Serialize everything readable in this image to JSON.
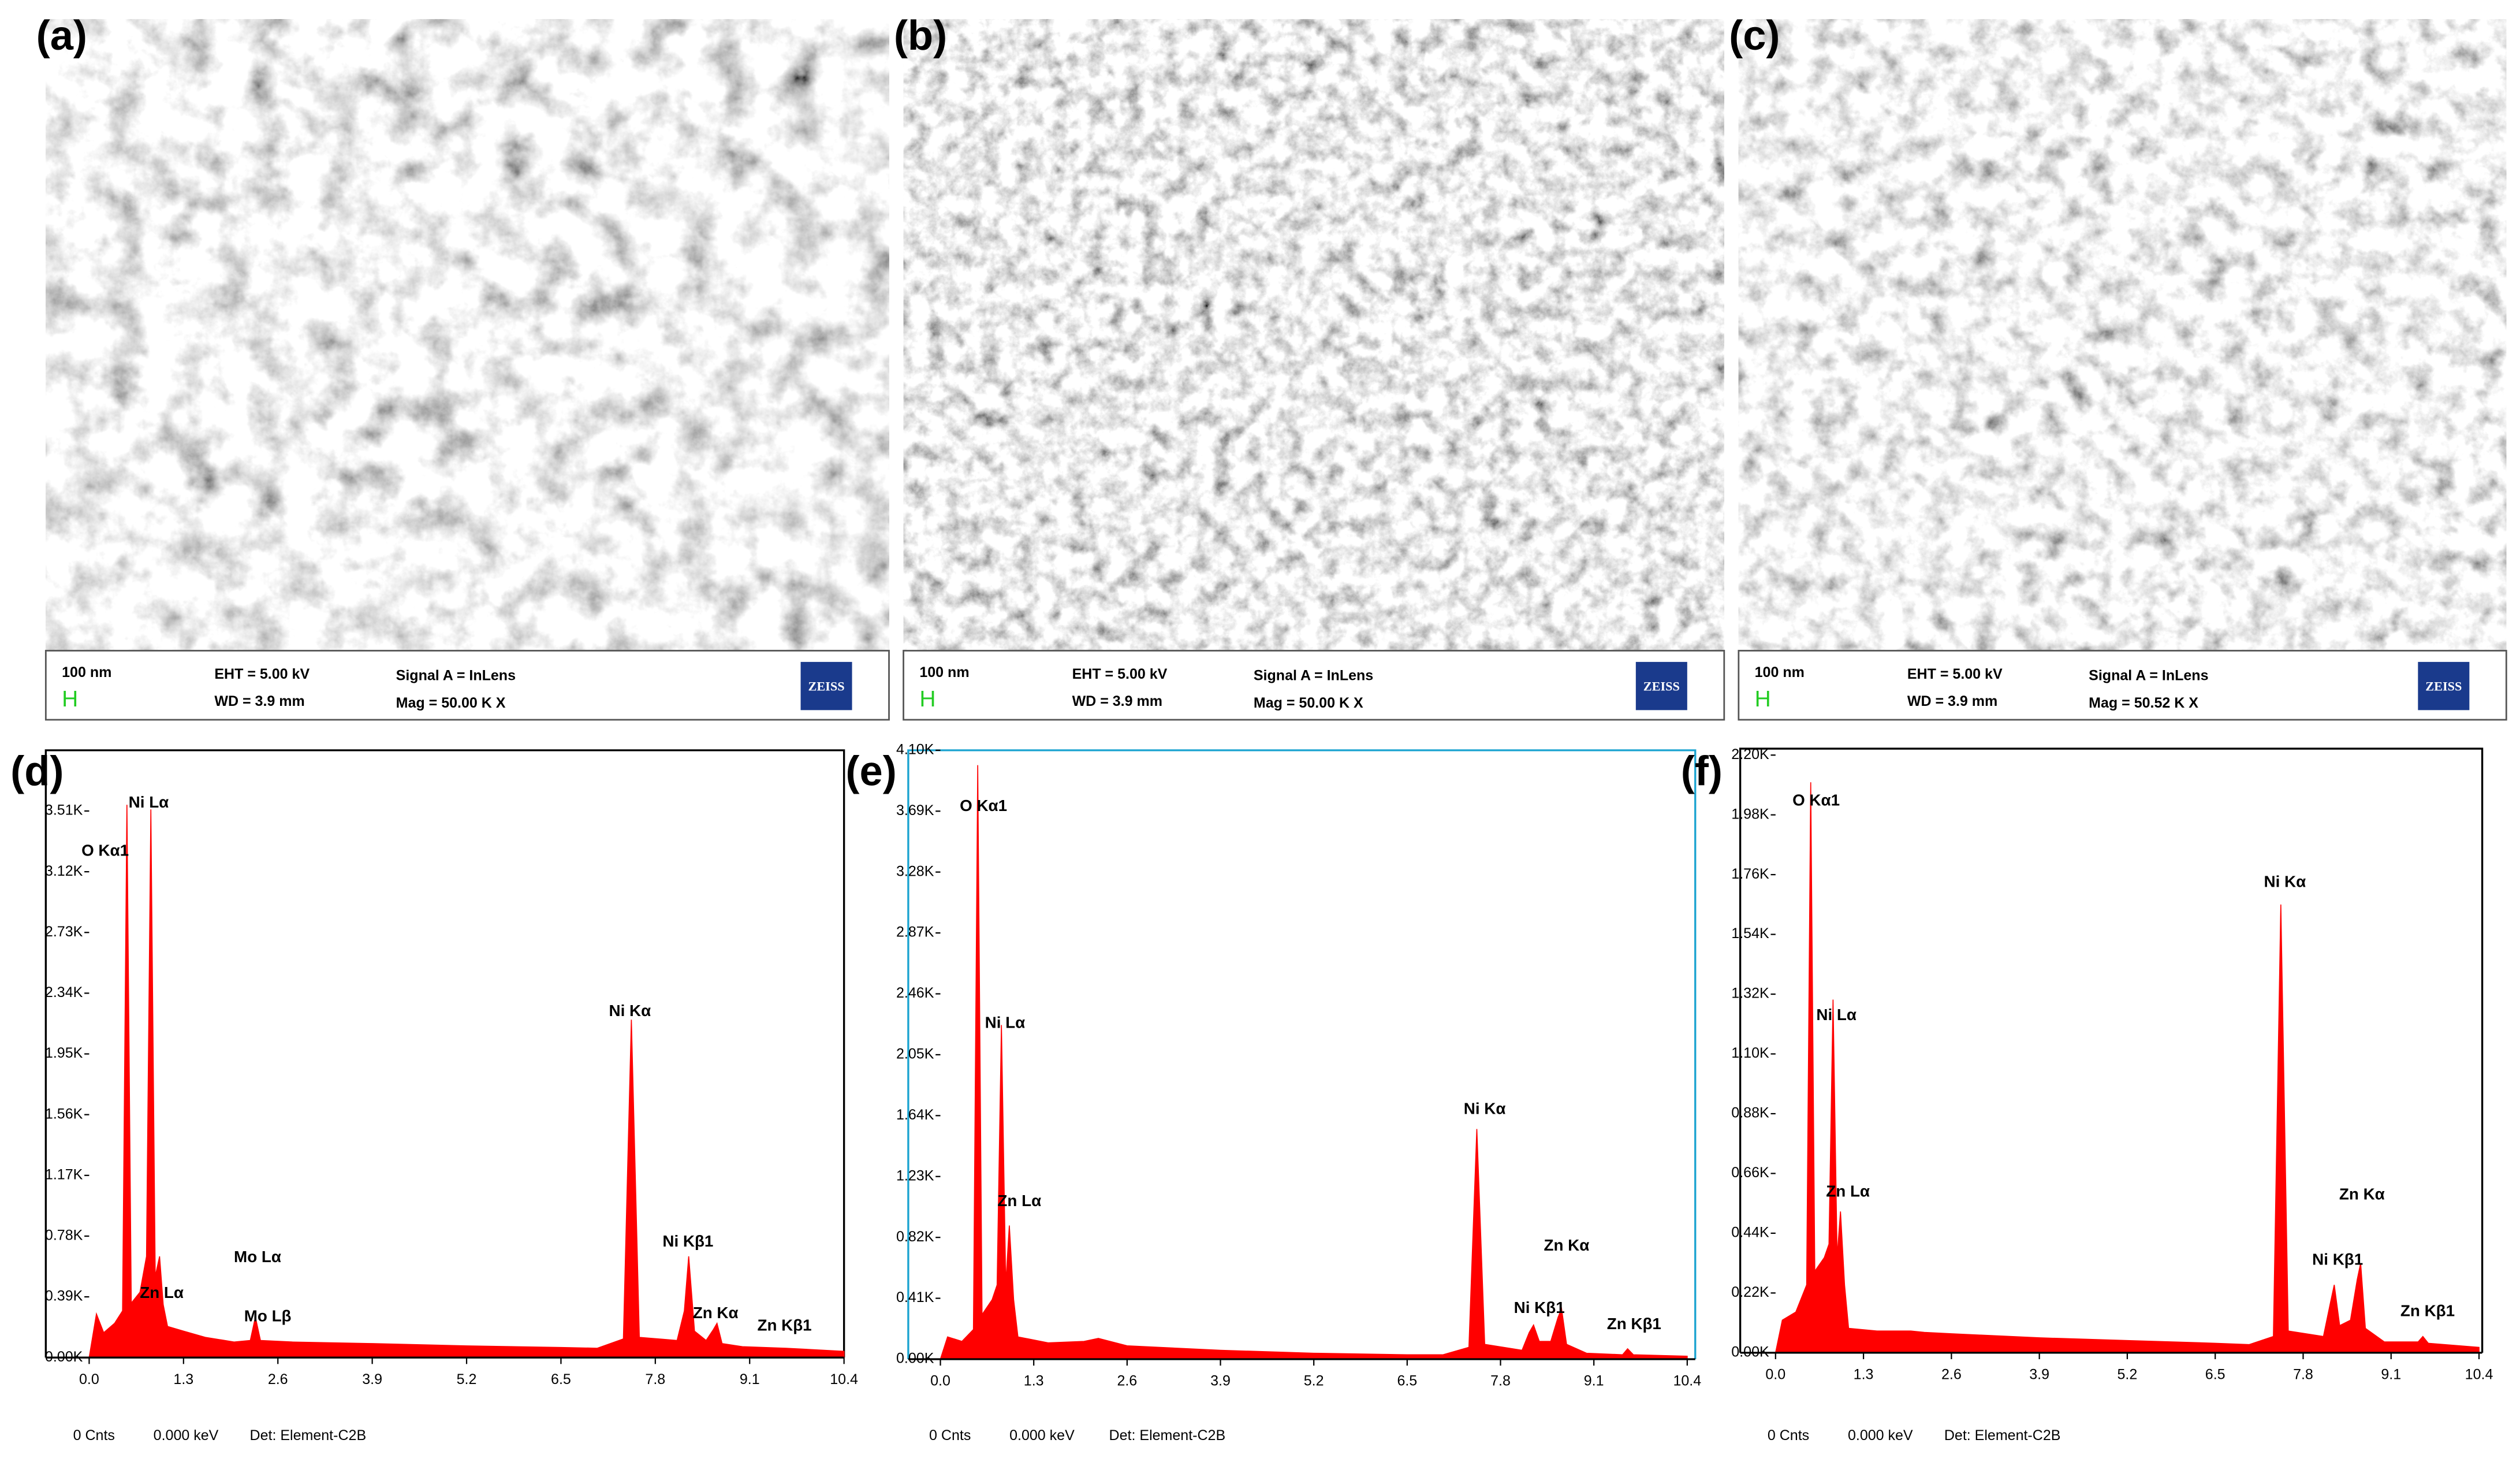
{
  "panels": [
    {
      "label": "(a)",
      "scale_bar": "100 nm",
      "scale_marker": "H",
      "eht": "EHT =  5.00 kV",
      "wd": "WD =  3.9 mm",
      "signal": "Signal A = InLens",
      "mag": "Mag =   50.00 K X",
      "logo": "ZEISS"
    },
    {
      "label": "(b)",
      "scale_bar": "100 nm",
      "scale_marker": "H",
      "eht": "EHT =  5.00 kV",
      "wd": "WD =  3.9 mm",
      "signal": "Signal A = InLens",
      "mag": "Mag =   50.00 K X",
      "logo": "ZEISS"
    },
    {
      "label": "(c)",
      "scale_bar": "100 nm",
      "scale_marker": "H",
      "eht": "EHT =  5.00 kV",
      "wd": "WD =  3.9 mm",
      "signal": "Signal A = InLens",
      "mag": "Mag =   50.52 K X",
      "logo": "ZEISS"
    }
  ],
  "chart_data": [
    {
      "type": "area",
      "label": "(d)",
      "color": "#ff0000",
      "x": [
        0.0,
        0.1,
        0.2,
        0.35,
        0.46,
        0.52,
        0.58,
        0.7,
        0.79,
        0.85,
        0.91,
        0.97,
        1.02,
        1.08,
        1.3,
        1.6,
        2.0,
        2.22,
        2.29,
        2.36,
        2.8,
        3.9,
        5.2,
        6.5,
        7.0,
        7.36,
        7.47,
        7.58,
        8.1,
        8.2,
        8.26,
        8.34,
        8.5,
        8.6,
        8.65,
        8.72,
        9.0,
        9.6,
        10.4
      ],
      "values": [
        0,
        280,
        160,
        220,
        300,
        3550,
        350,
        420,
        650,
        3520,
        520,
        650,
        340,
        200,
        170,
        130,
        100,
        110,
        260,
        110,
        100,
        90,
        75,
        65,
        60,
        120,
        2170,
        130,
        110,
        300,
        650,
        170,
        110,
        180,
        220,
        90,
        70,
        60,
        40
      ],
      "xlim": [
        0,
        10.4
      ],
      "xticks": [
        {
          "value": 0,
          "label": "0.0"
        },
        1.3,
        2.6,
        3.9,
        5.2,
        6.5,
        7.8,
        9.1,
        10.4
      ],
      "ylim": [
        0,
        3900
      ],
      "yticks": [
        {
          "value": 0,
          "label": "0.00K"
        },
        {
          "value": 390,
          "label": "0.39K"
        },
        {
          "value": 780,
          "label": "0.78K"
        },
        {
          "value": 1170,
          "label": "1.17K"
        },
        {
          "value": 1560,
          "label": "1.56K"
        },
        {
          "value": 1950,
          "label": "1.95K"
        },
        {
          "value": 2340,
          "label": "2.34K"
        },
        {
          "value": 2730,
          "label": "2.73K"
        },
        {
          "value": 3120,
          "label": "3.12K"
        },
        {
          "value": 3510,
          "label": "3.51K"
        }
      ],
      "annotations": [
        {
          "text": "O Kα1",
          "x": 0.22,
          "y": 3250
        },
        {
          "text": "Ni Lα",
          "x": 0.82,
          "y": 3560
        },
        {
          "text": "Zn Lα",
          "x": 1.0,
          "y": 410
        },
        {
          "text": "Mo Lα",
          "x": 2.32,
          "y": 640
        },
        {
          "text": "Mo Lβ",
          "x": 2.46,
          "y": 260
        },
        {
          "text": "Ni Kα",
          "x": 7.45,
          "y": 2220
        },
        {
          "text": "Ni Kβ1",
          "x": 8.25,
          "y": 740
        },
        {
          "text": "Zn Kα",
          "x": 8.63,
          "y": 280
        },
        {
          "text": "Zn Kβ1",
          "x": 9.58,
          "y": 200
        }
      ],
      "footer": [
        "0 Cnts",
        "0.000 keV",
        "Det: Element-C2B"
      ]
    },
    {
      "type": "area",
      "label": "(e)",
      "color": "#ff0000",
      "x": [
        0.0,
        0.1,
        0.3,
        0.46,
        0.52,
        0.58,
        0.72,
        0.79,
        0.85,
        0.91,
        0.96,
        1.02,
        1.08,
        1.5,
        2.0,
        2.2,
        2.6,
        3.9,
        5.2,
        6.5,
        7.0,
        7.36,
        7.47,
        7.58,
        8.1,
        8.2,
        8.26,
        8.34,
        8.5,
        8.6,
        8.65,
        8.72,
        9.0,
        9.5,
        9.57,
        9.65,
        10.4
      ],
      "values": [
        0,
        150,
        120,
        200,
        4000,
        300,
        400,
        500,
        2250,
        500,
        900,
        400,
        150,
        110,
        120,
        140,
        90,
        60,
        40,
        30,
        30,
        80,
        1550,
        100,
        60,
        180,
        230,
        120,
        120,
        280,
        340,
        100,
        40,
        30,
        70,
        30,
        20
      ],
      "xlim": [
        0,
        10.4
      ],
      "xticks": [
        {
          "value": 0,
          "label": "0.0"
        },
        1.3,
        2.6,
        3.9,
        5.2,
        6.5,
        7.8,
        9.1,
        10.4
      ],
      "ylim": [
        0,
        4100
      ],
      "yticks": [
        {
          "value": 0,
          "label": "0.00K"
        },
        {
          "value": 410,
          "label": "0.41K"
        },
        {
          "value": 820,
          "label": "0.82K"
        },
        {
          "value": 1230,
          "label": "1.23K"
        },
        {
          "value": 1640,
          "label": "1.64K"
        },
        {
          "value": 2050,
          "label": "2.05K"
        },
        {
          "value": 2460,
          "label": "2.46K"
        },
        {
          "value": 2870,
          "label": "2.87K"
        },
        {
          "value": 3280,
          "label": "3.28K"
        },
        {
          "value": 3690,
          "label": "3.69K"
        },
        {
          "value": 4100,
          "label": "4.10K"
        }
      ],
      "annotations": [
        {
          "text": "O Kα1",
          "x": 0.6,
          "y": 3720
        },
        {
          "text": "Ni Lα",
          "x": 0.9,
          "y": 2260
        },
        {
          "text": "Zn Lα",
          "x": 1.1,
          "y": 1060
        },
        {
          "text": "Ni Kα",
          "x": 7.58,
          "y": 1680
        },
        {
          "text": "Zn Kα",
          "x": 8.72,
          "y": 760
        },
        {
          "text": "Ni Kβ1",
          "x": 8.34,
          "y": 340
        },
        {
          "text": "Zn Kβ1",
          "x": 9.66,
          "y": 230
        }
      ],
      "footer": [
        "0 Cnts",
        "0.000 keV",
        "Det: Element-C2B"
      ]
    },
    {
      "type": "area",
      "label": "(f)",
      "color": "#ff0000",
      "x": [
        0.0,
        0.1,
        0.3,
        0.46,
        0.52,
        0.58,
        0.72,
        0.79,
        0.85,
        0.91,
        0.96,
        1.02,
        1.08,
        1.5,
        2.0,
        2.2,
        2.6,
        3.9,
        5.2,
        6.5,
        7.0,
        7.36,
        7.47,
        7.58,
        8.1,
        8.2,
        8.26,
        8.34,
        8.5,
        8.6,
        8.65,
        8.72,
        9.0,
        9.5,
        9.57,
        9.65,
        10.4
      ],
      "values": [
        0,
        120,
        150,
        250,
        2100,
        300,
        350,
        400,
        1300,
        350,
        520,
        250,
        90,
        80,
        80,
        75,
        70,
        55,
        45,
        35,
        30,
        60,
        1650,
        80,
        60,
        180,
        250,
        100,
        120,
        270,
        330,
        90,
        40,
        40,
        60,
        35,
        20
      ],
      "xlim": [
        0,
        10.4
      ],
      "xticks": [
        {
          "value": 0,
          "label": "0.0"
        },
        1.3,
        2.6,
        3.9,
        5.2,
        6.5,
        7.8,
        9.1,
        10.4
      ],
      "ylim": [
        0,
        2200
      ],
      "yticks": [
        {
          "value": 0,
          "label": "0.00K"
        },
        {
          "value": 220,
          "label": "0.22K"
        },
        {
          "value": 440,
          "label": "0.44K"
        },
        {
          "value": 660,
          "label": "0.66K"
        },
        {
          "value": 880,
          "label": "0.88K"
        },
        {
          "value": 1100,
          "label": "1.10K"
        },
        {
          "value": 1320,
          "label": "1.32K"
        },
        {
          "value": 1540,
          "label": "1.54K"
        },
        {
          "value": 1760,
          "label": "1.76K"
        },
        {
          "value": 1980,
          "label": "1.98K"
        },
        {
          "value": 2200,
          "label": "2.20K"
        }
      ],
      "annotations": [
        {
          "text": "O Kα1",
          "x": 0.6,
          "y": 2030
        },
        {
          "text": "Ni Lα",
          "x": 0.9,
          "y": 1240
        },
        {
          "text": "Zn Lα",
          "x": 1.07,
          "y": 590
        },
        {
          "text": "Ni Kα",
          "x": 7.53,
          "y": 1730
        },
        {
          "text": "Zn Kα",
          "x": 8.67,
          "y": 580
        },
        {
          "text": "Ni Kβ1",
          "x": 8.31,
          "y": 340
        },
        {
          "text": "Zn Kβ1",
          "x": 9.64,
          "y": 150
        }
      ],
      "footer": [
        "0 Cnts",
        "0.000 keV",
        "Det: Element-C2B"
      ]
    }
  ]
}
